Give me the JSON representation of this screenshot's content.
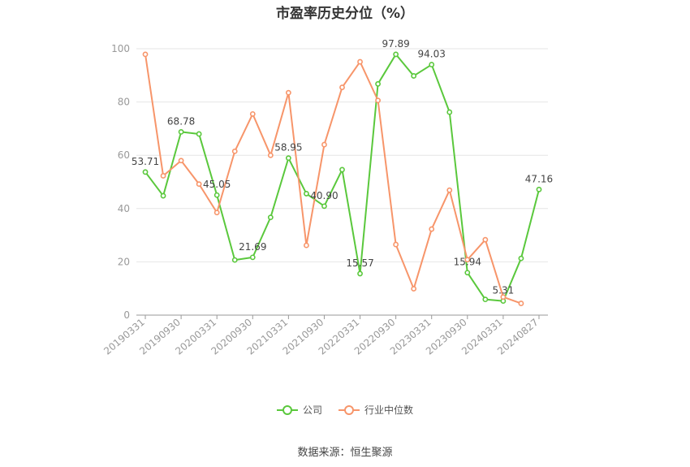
{
  "chart_data": {
    "type": "line",
    "title": "市盈率历史分位（%）",
    "x": [
      "20190331",
      "20190630",
      "20190930",
      "20191231",
      "20200331",
      "20200630",
      "20200930",
      "20201231",
      "20210331",
      "20210630",
      "20210930",
      "20211231",
      "20220331",
      "20220630",
      "20220930",
      "20221231",
      "20230331",
      "20230630",
      "20230930",
      "20231231",
      "20240331",
      "20240630",
      "20240827"
    ],
    "x_tick_labels": [
      "20190331",
      "20190930",
      "20200331",
      "20200930",
      "20210331",
      "20210930",
      "20220331",
      "20220930",
      "20230331",
      "20230930",
      "20240331",
      "20240827"
    ],
    "ylim": [
      0,
      100
    ],
    "y_ticks": [
      0,
      20,
      40,
      60,
      80,
      100
    ],
    "grid": true,
    "legend_position": "bottom",
    "series": [
      {
        "name": "公司",
        "color": "#5ac83c",
        "values": [
          53.71,
          44.8,
          68.78,
          68.0,
          45.05,
          20.7,
          21.69,
          36.7,
          58.95,
          45.6,
          40.9,
          54.6,
          15.57,
          86.8,
          97.89,
          89.8,
          94.03,
          76.2,
          15.94,
          5.9,
          5.31,
          21.3,
          47.16
        ],
        "data_labels": [
          {
            "index": 0,
            "text": "53.71"
          },
          {
            "index": 2,
            "text": "68.78"
          },
          {
            "index": 4,
            "text": "45.05"
          },
          {
            "index": 6,
            "text": "21.69"
          },
          {
            "index": 8,
            "text": "58.95"
          },
          {
            "index": 10,
            "text": "40.90"
          },
          {
            "index": 12,
            "text": "15.57"
          },
          {
            "index": 14,
            "text": "97.89"
          },
          {
            "index": 16,
            "text": "94.03"
          },
          {
            "index": 18,
            "text": "15.94"
          },
          {
            "index": 20,
            "text": "5.31"
          },
          {
            "index": 22,
            "text": "47.16"
          }
        ]
      },
      {
        "name": "行业中位数",
        "color": "#f7956a",
        "values": [
          97.9,
          52.3,
          58.0,
          49.2,
          38.5,
          61.5,
          75.5,
          60.0,
          83.5,
          26.2,
          64.0,
          85.5,
          95.1,
          80.6,
          26.5,
          9.9,
          32.3,
          46.9,
          20.8,
          28.3,
          6.8,
          4.4,
          null
        ]
      }
    ]
  },
  "legend": {
    "company_label": "公司",
    "industry_label": "行业中位数"
  },
  "source": "数据来源：恒生聚源"
}
